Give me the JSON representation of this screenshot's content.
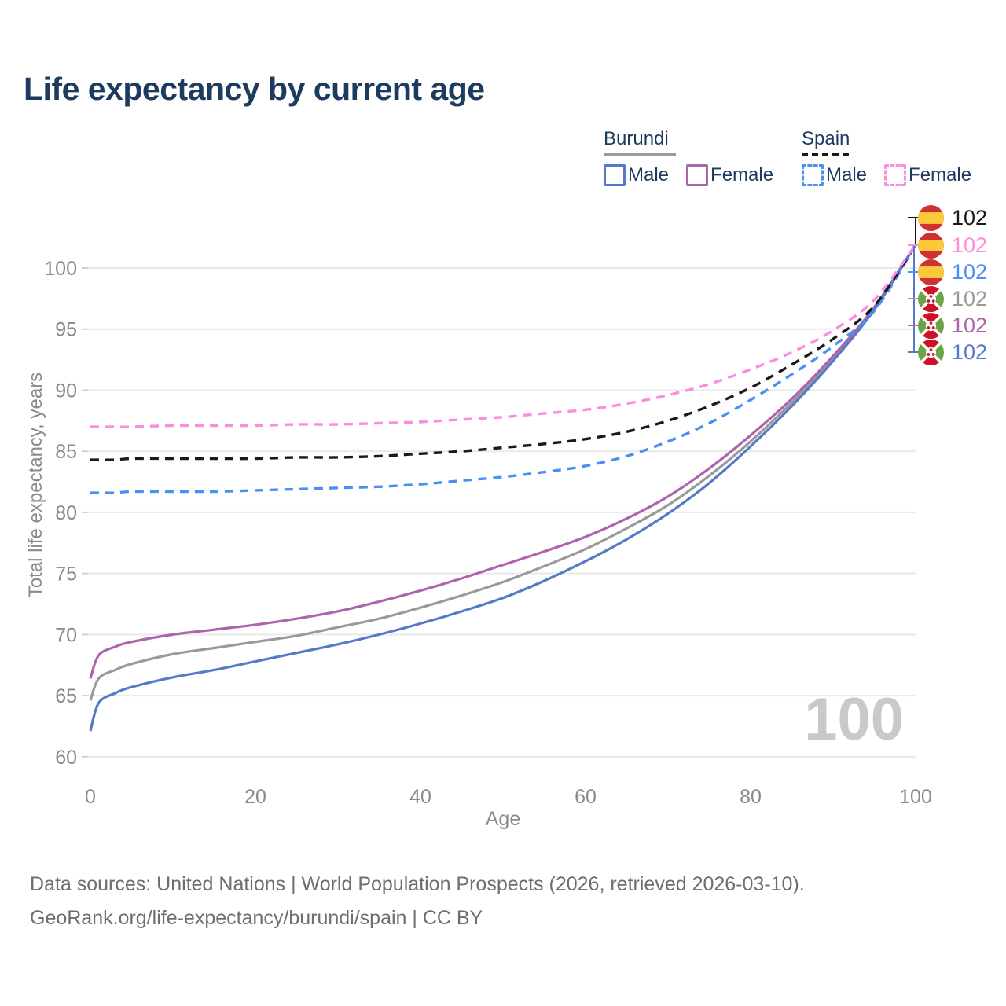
{
  "title": "Life expectancy by current age",
  "legend": {
    "burundi": {
      "title": "Burundi",
      "male": "Male",
      "female": "Female"
    },
    "spain": {
      "title": "Spain",
      "male": "Male",
      "female": "Female"
    }
  },
  "watermark": "100",
  "footer": {
    "line1": "Data sources: United Nations | World Population Prospects (2026, retrieved 2026-03-10).",
    "line2": "GeoRank.org/life-expectancy/burundi/spain | CC BY"
  },
  "end_labels": [
    {
      "flag": "spain",
      "series": "Spain average",
      "value": "102",
      "color": "#1a1a1a"
    },
    {
      "flag": "spain",
      "series": "Spain female",
      "value": "102",
      "color": "#fc8ce0"
    },
    {
      "flag": "spain",
      "series": "Spain male",
      "value": "102",
      "color": "#4a90f4"
    },
    {
      "flag": "burundi",
      "series": "Burundi average",
      "value": "102",
      "color": "#9a9a9a"
    },
    {
      "flag": "burundi",
      "series": "Burundi female",
      "value": "102",
      "color": "#ad64ad"
    },
    {
      "flag": "burundi",
      "series": "Burundi male",
      "value": "102",
      "color": "#567ac8"
    }
  ],
  "colors": {
    "title_text": "#1d3a5f",
    "axis_text": "#8a8a8a",
    "gridline": "#e9e9e9",
    "tick_mark": "#cfcfcf",
    "watermark": "#c9c9c9",
    "footer_text": "#6e6e6e",
    "burundi_male": "#567ac8",
    "burundi_female": "#ad64ad",
    "burundi_average": "#9a9a9a",
    "spain_male": "#4a90f4",
    "spain_female": "#fc8ce0",
    "spain_average": "#1a1a1a",
    "flag_spain_red": "#d03131",
    "flag_spain_yellow": "#fbca3c",
    "flag_burundi_red": "#ce1126",
    "flag_burundi_green": "#6da544"
  },
  "chart_data": {
    "type": "line",
    "title": "Life expectancy by current age",
    "xlabel": "Age",
    "ylabel": "Total life expectancy, years",
    "xlim": [
      0,
      100
    ],
    "ylim": [
      60,
      103
    ],
    "x_ticks": [
      0,
      20,
      40,
      60,
      80,
      100
    ],
    "y_ticks": [
      60,
      65,
      70,
      75,
      80,
      85,
      90,
      95,
      100
    ],
    "grid": "horizontal",
    "legend_position": "top-right",
    "x": [
      0,
      1,
      3,
      5,
      10,
      15,
      20,
      25,
      30,
      35,
      40,
      45,
      50,
      55,
      60,
      65,
      70,
      75,
      80,
      85,
      90,
      95,
      100
    ],
    "series": [
      {
        "name": "Burundi Average",
        "country": "Burundi",
        "style": "solid",
        "color": "#9a9a9a",
        "values": [
          64.6,
          66.4,
          67.1,
          67.6,
          68.4,
          68.9,
          69.4,
          69.9,
          70.6,
          71.3,
          72.2,
          73.2,
          74.3,
          75.6,
          77.0,
          78.7,
          80.6,
          83.0,
          85.8,
          89.0,
          92.6,
          96.7,
          101.9
        ]
      },
      {
        "name": "Burundi Female",
        "country": "Burundi",
        "style": "solid",
        "color": "#ad64ad",
        "values": [
          66.4,
          68.3,
          69.0,
          69.4,
          70.0,
          70.4,
          70.8,
          71.3,
          71.9,
          72.7,
          73.6,
          74.6,
          75.7,
          76.8,
          78.0,
          79.5,
          81.3,
          83.6,
          86.3,
          89.3,
          92.8,
          96.8,
          101.9
        ]
      },
      {
        "name": "Burundi Male",
        "country": "Burundi",
        "style": "solid",
        "color": "#567ac8",
        "values": [
          62.1,
          64.4,
          65.2,
          65.7,
          66.5,
          67.1,
          67.8,
          68.5,
          69.2,
          70.0,
          70.9,
          71.9,
          73.0,
          74.4,
          76.0,
          77.8,
          79.9,
          82.4,
          85.4,
          88.7,
          92.4,
          96.6,
          101.9
        ]
      },
      {
        "name": "Spain Male",
        "country": "Spain",
        "style": "dashed",
        "color": "#4a90f4",
        "values": [
          81.6,
          81.6,
          81.6,
          81.7,
          81.7,
          81.7,
          81.8,
          81.9,
          82.0,
          82.1,
          82.3,
          82.6,
          82.9,
          83.3,
          83.8,
          84.6,
          85.8,
          87.3,
          89.2,
          91.3,
          93.6,
          96.5,
          101.9
        ]
      },
      {
        "name": "Spain Average",
        "country": "Spain",
        "style": "dashed",
        "color": "#1a1a1a",
        "values": [
          84.3,
          84.3,
          84.3,
          84.4,
          84.4,
          84.4,
          84.4,
          84.5,
          84.5,
          84.6,
          84.8,
          85.0,
          85.3,
          85.6,
          86.0,
          86.6,
          87.5,
          88.7,
          90.2,
          92.1,
          94.2,
          96.9,
          101.9
        ]
      },
      {
        "name": "Spain Female",
        "country": "Spain",
        "style": "dashed",
        "color": "#fc8ce0",
        "values": [
          87.0,
          87.0,
          87.0,
          87.0,
          87.1,
          87.1,
          87.1,
          87.2,
          87.2,
          87.3,
          87.4,
          87.6,
          87.8,
          88.1,
          88.4,
          88.9,
          89.6,
          90.5,
          91.7,
          93.1,
          94.9,
          97.4,
          101.9
        ]
      }
    ]
  }
}
